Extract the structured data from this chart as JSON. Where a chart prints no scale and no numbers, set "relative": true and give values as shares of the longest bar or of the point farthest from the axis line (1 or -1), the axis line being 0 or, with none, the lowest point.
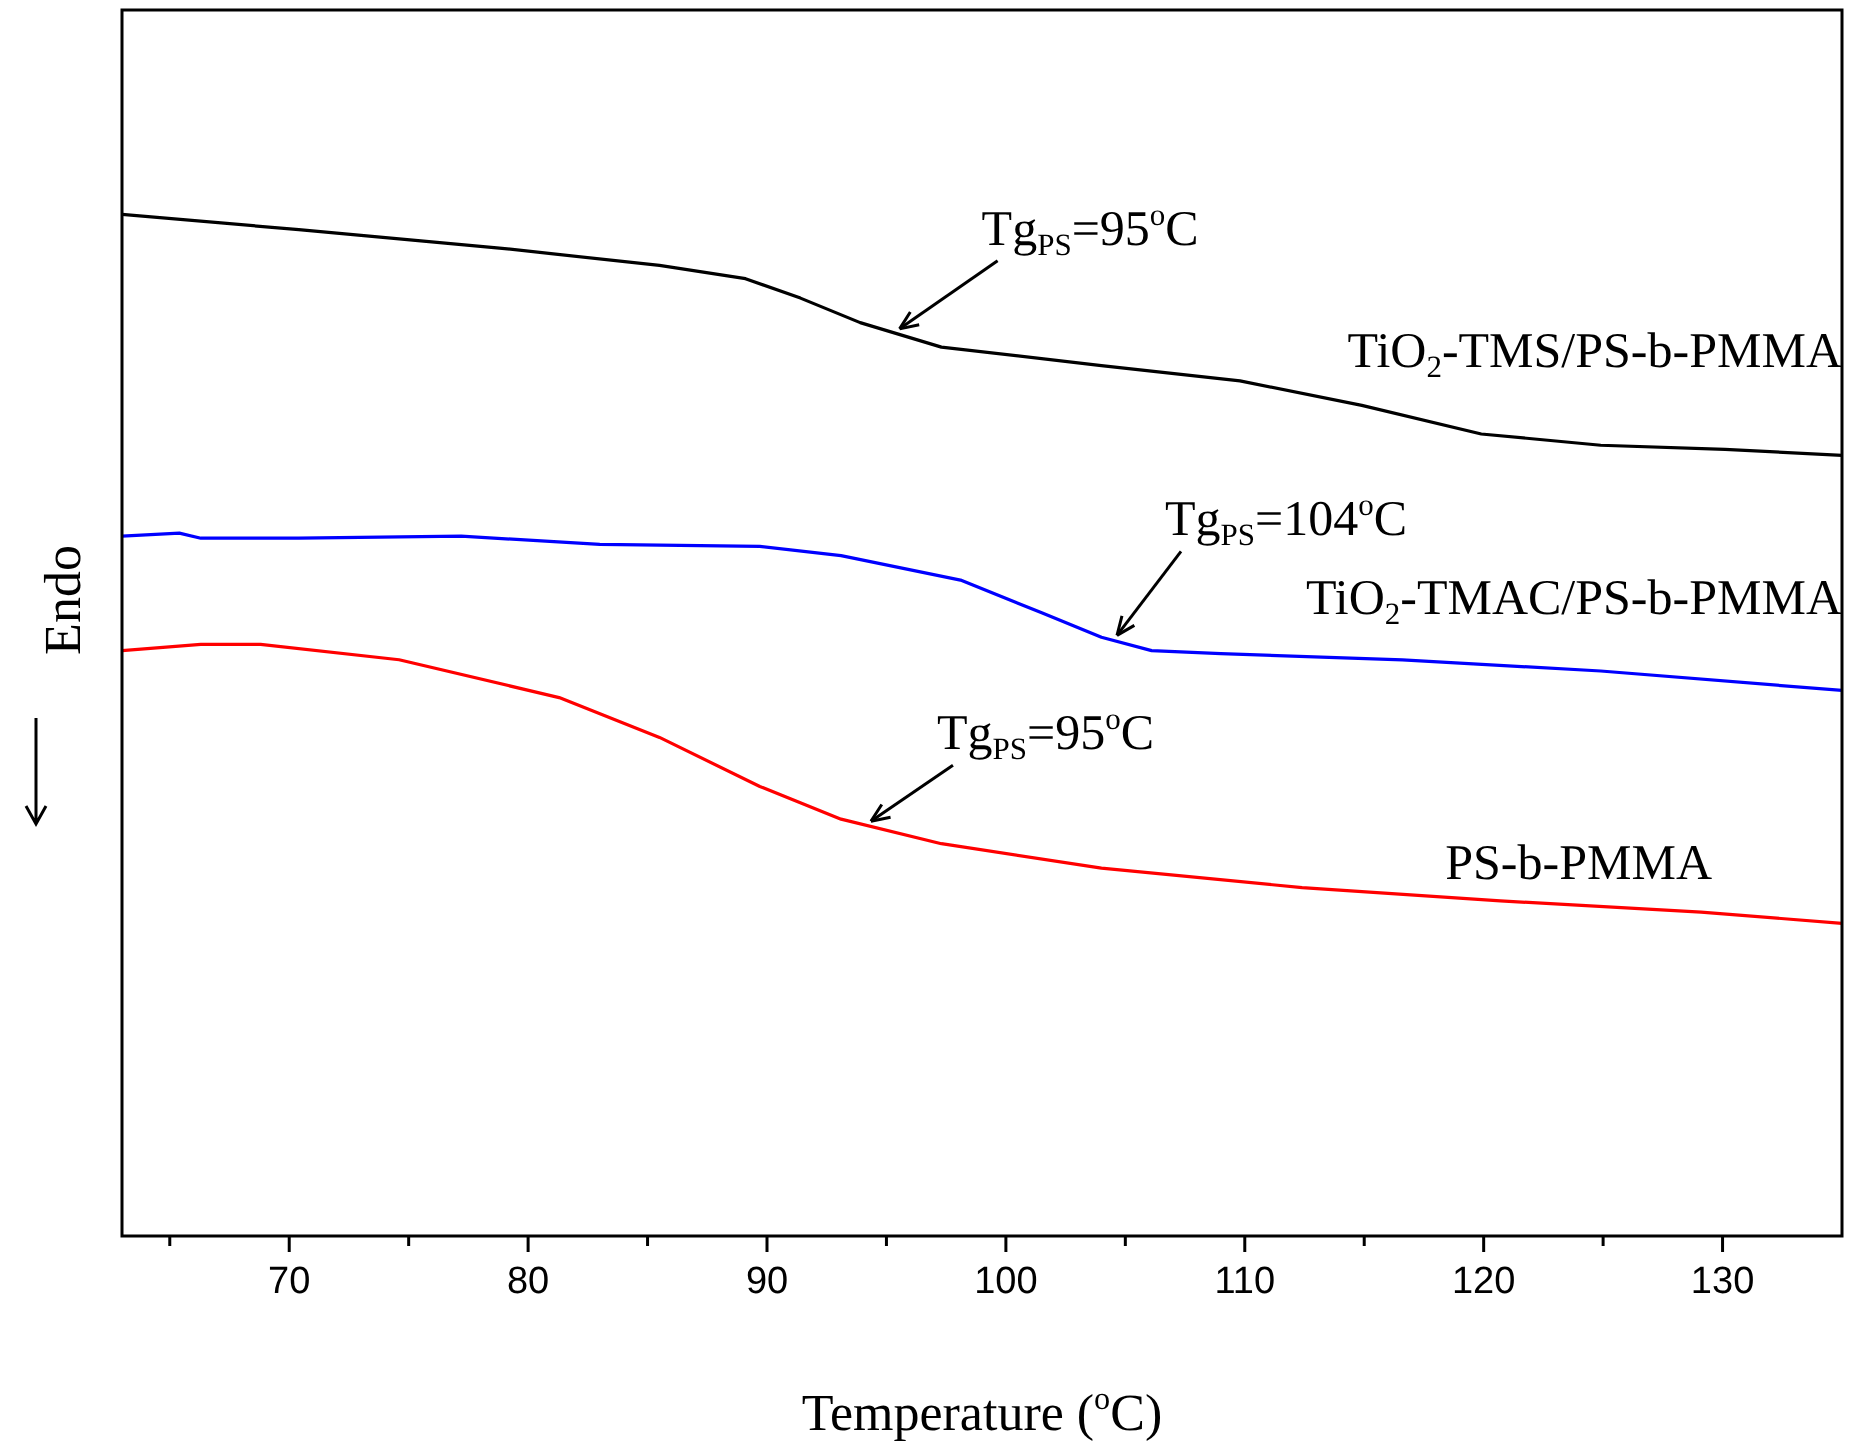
{
  "chart_data": {
    "type": "line",
    "relative": true,
    "xlabel": "Temperature ($^{o}$C)",
    "ylabel": "Endo",
    "xlim": [
      63,
      135
    ],
    "xticks": [
      {
        "value": 65,
        "label": null
      },
      70,
      {
        "value": 75,
        "label": null
      },
      80,
      {
        "value": 85,
        "label": null
      },
      90,
      {
        "value": 95,
        "label": null
      },
      100,
      {
        "value": 105,
        "label": null
      },
      110,
      {
        "value": 115,
        "label": null
      },
      120,
      {
        "value": 125,
        "label": null
      },
      130
    ],
    "legend": false,
    "grid": false,
    "marker": "none",
    "line_style": "solid",
    "series": [
      {
        "name": "TiO$_{2}$-TMS/PS-b-PMMA",
        "color": "#000000",
        "x": [
          63,
          70.4,
          78.8,
          85.5,
          89.1,
          91.4,
          93.9,
          97.3,
          104.0,
          109.8,
          114.9,
          119.9,
          124.9,
          130.1,
          135
        ],
        "values": [
          1.0,
          0.985,
          0.967,
          0.95,
          0.937,
          0.918,
          0.894,
          0.87,
          0.852,
          0.837,
          0.813,
          0.785,
          0.774,
          0.77,
          0.764
        ]
      },
      {
        "name": "TiO$_{2}$-TMAC/PS-b-PMMA",
        "color": "#0000ff",
        "x": [
          63,
          65.4,
          66.3,
          70.4,
          77.2,
          83.0,
          89.7,
          93.1,
          98.1,
          101.5,
          104.0,
          106.1,
          109.0,
          116.6,
          124.9,
          135
        ],
        "values": [
          0.685,
          0.688,
          0.683,
          0.683,
          0.685,
          0.677,
          0.675,
          0.666,
          0.642,
          0.61,
          0.586,
          0.573,
          0.57,
          0.564,
          0.553,
          0.534
        ]
      },
      {
        "name": "PS-b-PMMA",
        "color": "#ff0000",
        "x": [
          63,
          66.3,
          68.8,
          74.6,
          81.3,
          85.5,
          89.7,
          93.1,
          97.3,
          104.0,
          112.4,
          120.7,
          129.1,
          135
        ],
        "values": [
          0.573,
          0.579,
          0.579,
          0.564,
          0.527,
          0.488,
          0.44,
          0.408,
          0.384,
          0.36,
          0.341,
          0.328,
          0.317,
          0.306
        ]
      }
    ],
    "annotations": [
      {
        "text": "Tg$_{PS}$=95$^{o}$C",
        "x": 95.3,
        "y": 0.884
      },
      {
        "text": "Tg$_{PS}$=104$^{o}$C",
        "x": 104.4,
        "y": 0.584
      },
      {
        "text": "Tg$_{PS}$=95$^{o}$C",
        "x": 94.1,
        "y": 0.402
      }
    ]
  }
}
